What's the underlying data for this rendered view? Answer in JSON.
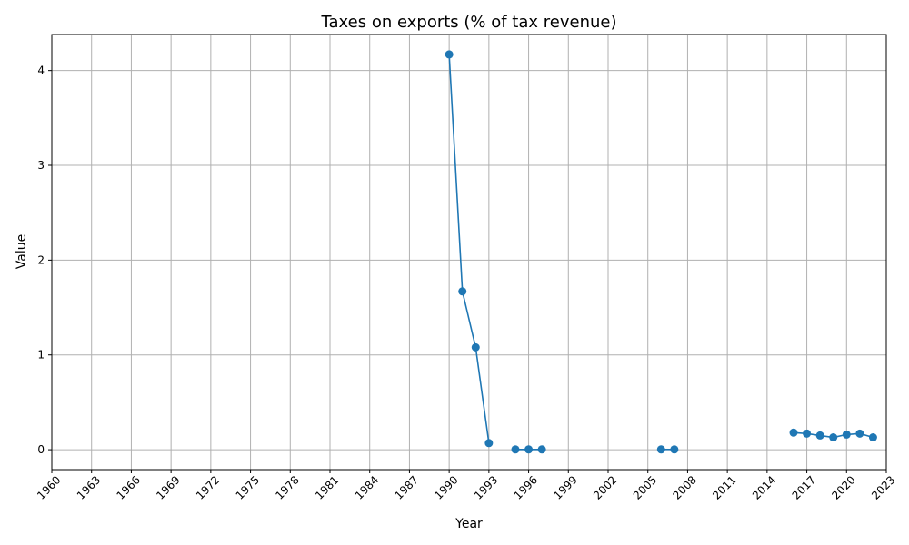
{
  "chart_data": {
    "type": "line",
    "title": "Taxes on exports (% of tax revenue)",
    "xlabel": "Year",
    "ylabel": "Value",
    "xlim": [
      1960,
      2023
    ],
    "ylim": [
      -0.21,
      4.38
    ],
    "x_ticks": [
      1960,
      1963,
      1966,
      1969,
      1972,
      1975,
      1978,
      1981,
      1984,
      1987,
      1990,
      1993,
      1996,
      1999,
      2002,
      2005,
      2008,
      2011,
      2014,
      2017,
      2020,
      2023
    ],
    "y_ticks": [
      0,
      1,
      2,
      3,
      4
    ],
    "grid": true,
    "line_color": "#1f77b4",
    "series": [
      {
        "points": [
          {
            "x": 1990,
            "y": 4.17
          },
          {
            "x": 1991,
            "y": 1.67
          },
          {
            "x": 1992,
            "y": 1.08
          },
          {
            "x": 1993,
            "y": 0.07
          },
          {
            "x": 1994,
            "y": null
          },
          {
            "x": 1995,
            "y": 0.003
          },
          {
            "x": 1996,
            "y": 0.003
          },
          {
            "x": 1997,
            "y": 0.003
          },
          {
            "x": 1998,
            "y": null
          },
          {
            "x": 2005,
            "y": null
          },
          {
            "x": 2006,
            "y": 0.003
          },
          {
            "x": 2007,
            "y": 0.003
          },
          {
            "x": 2008,
            "y": null
          },
          {
            "x": 2015,
            "y": null
          },
          {
            "x": 2016,
            "y": 0.18
          },
          {
            "x": 2017,
            "y": 0.17
          },
          {
            "x": 2018,
            "y": 0.15
          },
          {
            "x": 2019,
            "y": 0.13
          },
          {
            "x": 2020,
            "y": 0.16
          },
          {
            "x": 2021,
            "y": 0.17
          },
          {
            "x": 2022,
            "y": 0.13
          }
        ]
      }
    ]
  }
}
